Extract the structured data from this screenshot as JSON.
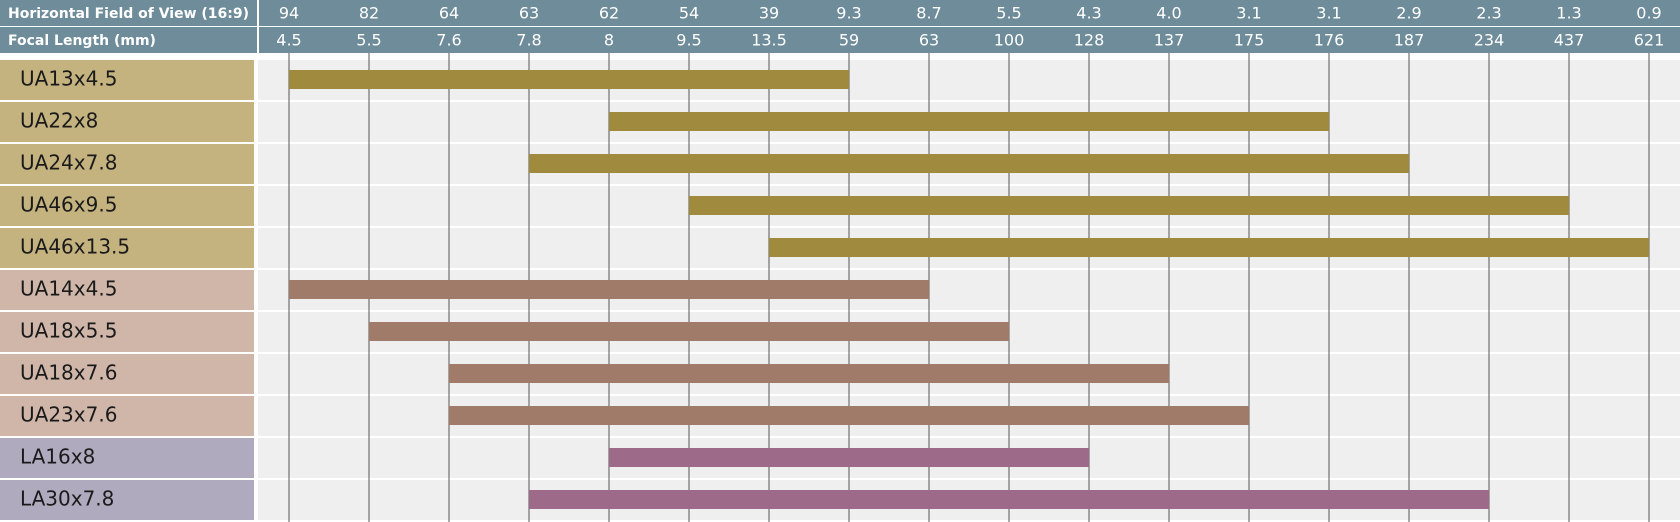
{
  "chart_data": {
    "type": "range-bar",
    "x2_label": "Horizontal Field of View (16:9)",
    "x_label": "Focal Length (mm)",
    "x2ticks": [
      94,
      82,
      64,
      63,
      62,
      54,
      39,
      9.3,
      8.7,
      5.5,
      4.3,
      {
        "value": 4,
        "label": "4.0"
      },
      3.1,
      3.1,
      2.9,
      2.3,
      1.3,
      0.9
    ],
    "xticks": [
      4.5,
      5.5,
      7.6,
      7.8,
      8,
      9.5,
      13.5,
      59,
      63,
      100,
      128,
      137,
      175,
      176,
      187,
      234,
      437,
      621
    ],
    "header_color": "#6f8c9a",
    "grid": true,
    "series": [
      {
        "name": "UA13x4.5",
        "color": "#a08a3e",
        "label_color": "#c4b27f",
        "values": [
          4.5,
          59
        ]
      },
      {
        "name": "UA22x8",
        "color": "#a08a3e",
        "label_color": "#c4b27f",
        "values": [
          8,
          176
        ]
      },
      {
        "name": "UA24x7.8",
        "color": "#a08a3e",
        "label_color": "#c4b27f",
        "values": [
          7.8,
          187
        ]
      },
      {
        "name": "UA46x9.5",
        "color": "#a08a3e",
        "label_color": "#c4b27f",
        "values": [
          9.5,
          437
        ]
      },
      {
        "name": "UA46x13.5",
        "color": "#a08a3e",
        "label_color": "#c4b27f",
        "values": [
          13.5,
          621
        ]
      },
      {
        "name": "UA14x4.5",
        "color": "#a07b69",
        "label_color": "#cfb6a9",
        "values": [
          4.5,
          63
        ]
      },
      {
        "name": "UA18x5.5",
        "color": "#a07b69",
        "label_color": "#cfb6a9",
        "values": [
          5.5,
          100
        ]
      },
      {
        "name": "UA18x7.6",
        "color": "#a07b69",
        "label_color": "#cfb6a9",
        "values": [
          7.6,
          137
        ]
      },
      {
        "name": "UA23x7.6",
        "color": "#a07b69",
        "label_color": "#cfb6a9",
        "values": [
          7.6,
          175
        ]
      },
      {
        "name": "LA16x8",
        "color": "#9e6a8a",
        "label_color": "#b0aabf",
        "values": [
          8,
          128
        ]
      },
      {
        "name": "LA30x7.8",
        "color": "#9e6a8a",
        "label_color": "#b0aabf",
        "values": [
          7.8,
          234
        ]
      }
    ]
  }
}
